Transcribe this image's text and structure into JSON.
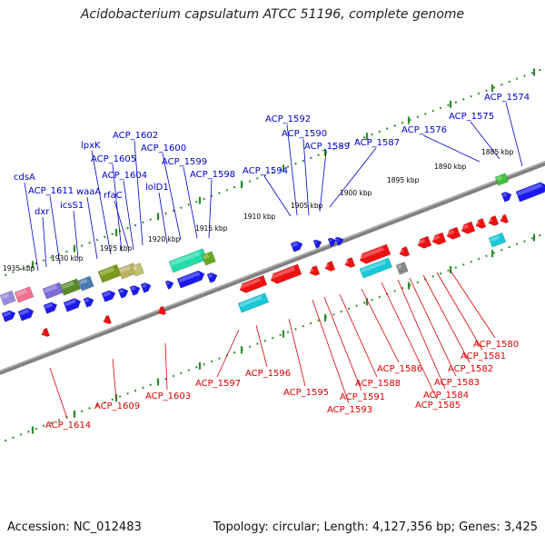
{
  "title": "Acidobacterium capsulatum ATCC 51196, complete genome",
  "footer": {
    "accession": "Accession: NC_012483",
    "topology": "Topology: circular; Length: 4,127,356 bp; Genes: 3,425"
  },
  "colors": {
    "forward_label": "#0000cc",
    "reverse_label": "#dd0000",
    "tick": "#2e8b2e",
    "backbone": "#808080"
  },
  "kbp_ticks": [
    "1885 kbp",
    "1890 kbp",
    "1895 kbp",
    "1900 kbp",
    "1905 kbp",
    "1910 kbp",
    "1915 kbp",
    "1920 kbp",
    "1925 kbp",
    "1930 kbp",
    "1935 kbp"
  ],
  "forward_labels": [
    "ACP_1574",
    "ACP_1575",
    "ACP_1576",
    "ACP_1587",
    "ACP_1589",
    "ACP_1590",
    "ACP_1592",
    "ACP_1594",
    "ACP_1598",
    "ACP_1599",
    "ACP_1600",
    "ACP_1602",
    "lolD1",
    "ACP_1604",
    "ACP_1605",
    "rfaC",
    "lpxK",
    "waaA",
    "icsS1",
    "ACP_1611",
    "dxr",
    "cdsA"
  ],
  "reverse_labels": [
    "ACP_1580",
    "ACP_1581",
    "ACP_1582",
    "ACP_1583",
    "ACP_1584",
    "ACP_1585",
    "ACP_1586",
    "ACP_1588",
    "ACP_1591",
    "ACP_1593",
    "ACP_1595",
    "ACP_1596",
    "ACP_1597",
    "ACP_1603",
    "ACP_1609",
    "ACP_1614"
  ]
}
